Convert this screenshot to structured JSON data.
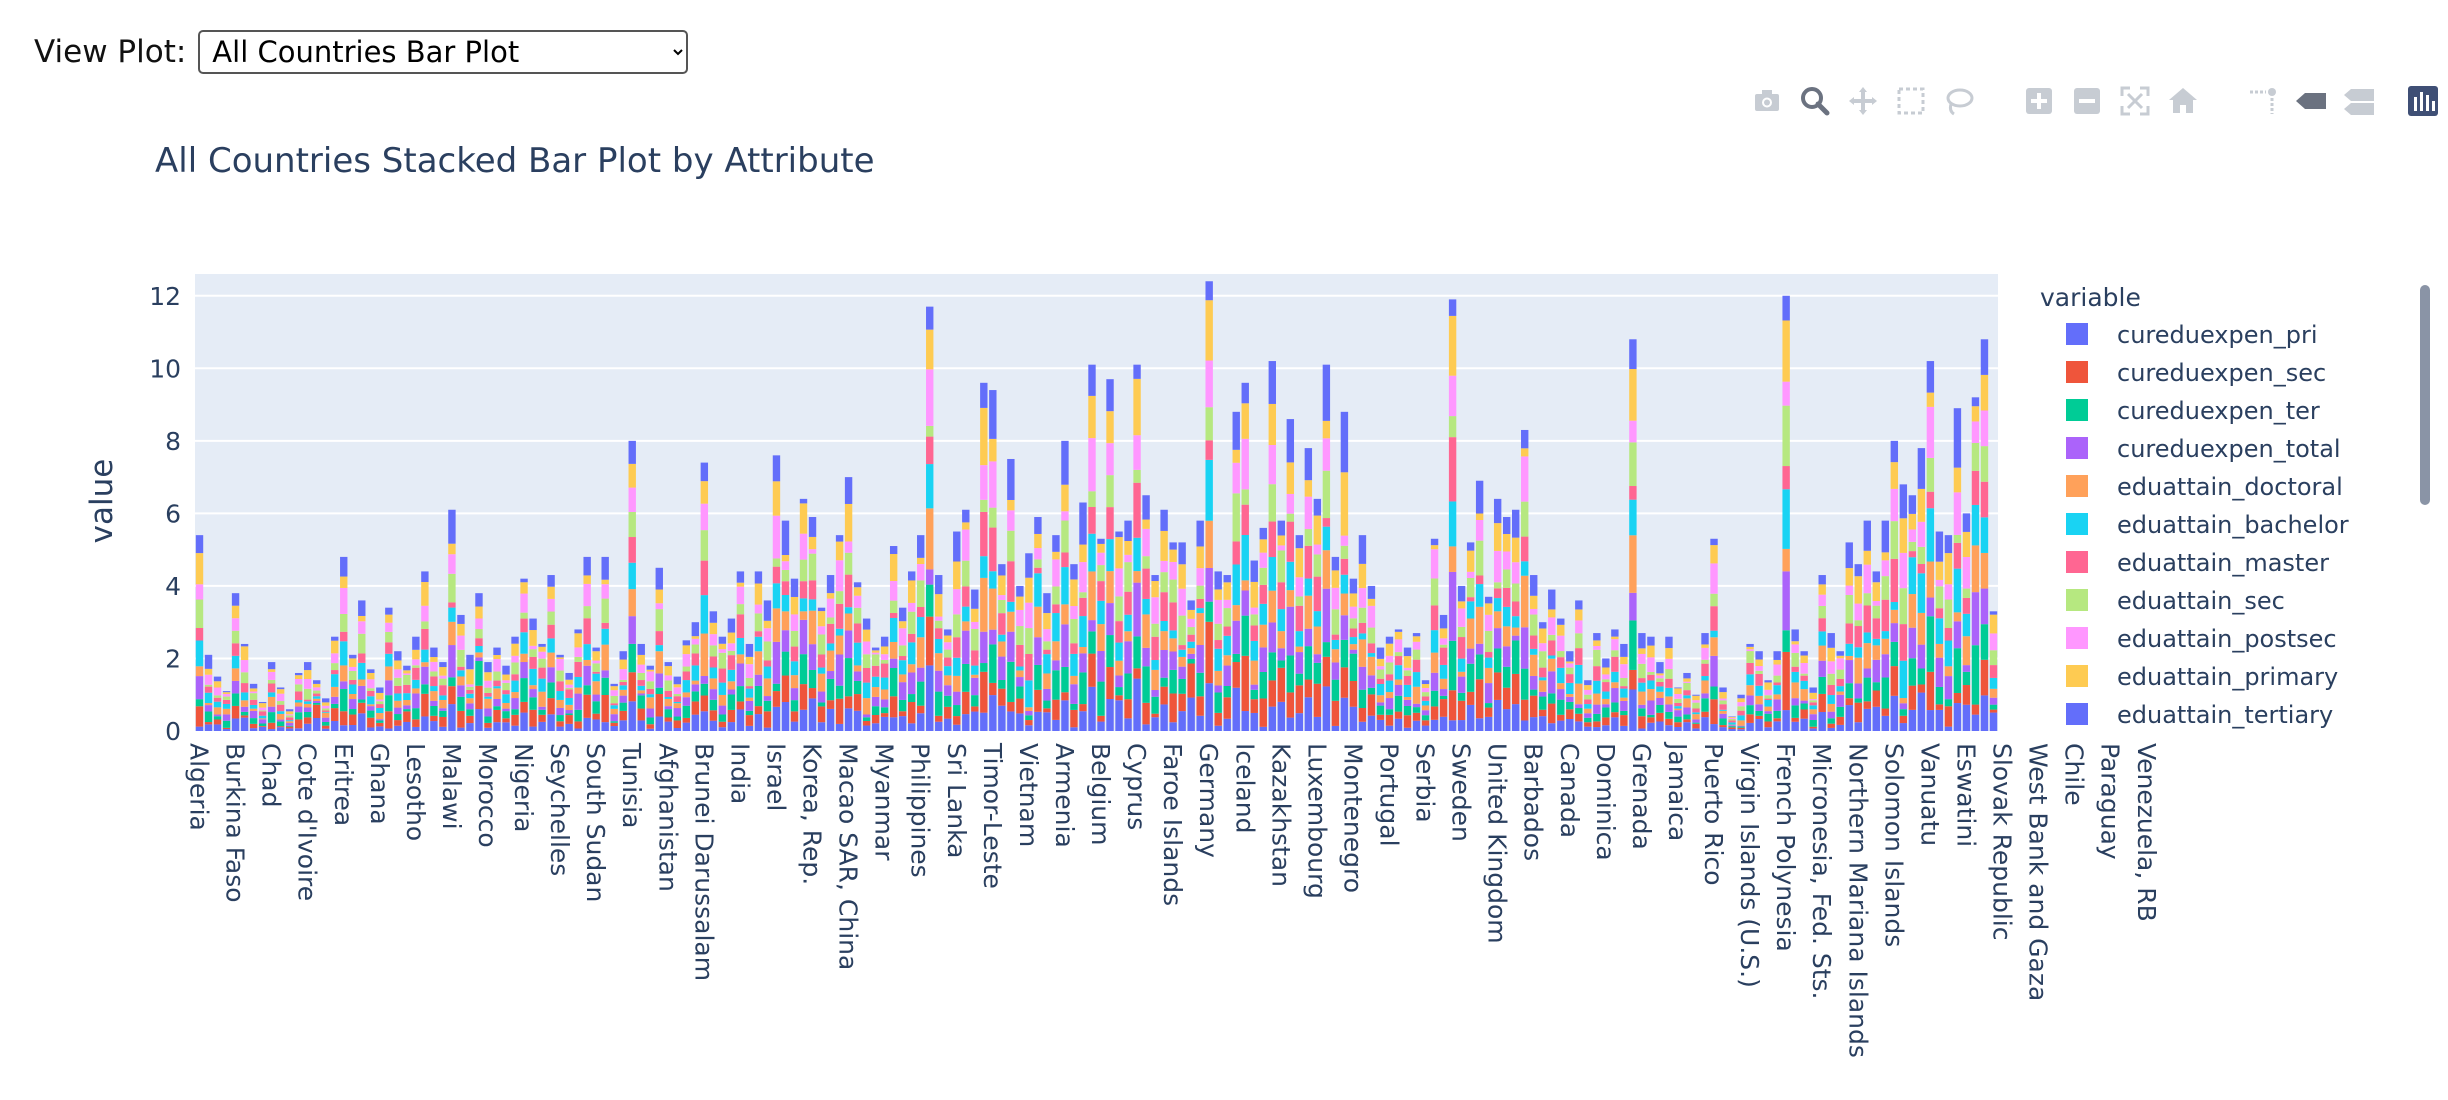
{
  "controls": {
    "label": "View Plot:",
    "selected": "All Countries Bar Plot",
    "options": [
      "All Countries Bar Plot"
    ]
  },
  "modebar": {
    "buttons": [
      {
        "name": "camera-icon",
        "title": "Download plot as a png"
      },
      {
        "name": "zoom-icon",
        "title": "Zoom"
      },
      {
        "name": "pan-icon",
        "title": "Pan"
      },
      {
        "name": "box-select-icon",
        "title": "Box Select"
      },
      {
        "name": "lasso-select-icon",
        "title": "Lasso Select"
      },
      {
        "name": "zoom-in-icon",
        "title": "Zoom in"
      },
      {
        "name": "zoom-out-icon",
        "title": "Zoom out"
      },
      {
        "name": "autoscale-icon",
        "title": "Autoscale"
      },
      {
        "name": "reset-axes-icon",
        "title": "Reset axes"
      },
      {
        "name": "spike-lines-icon",
        "title": "Toggle Spike Lines"
      },
      {
        "name": "hover-closest-icon",
        "title": "Show closest data on hover"
      },
      {
        "name": "hover-compare-icon",
        "title": "Compare data on hover"
      },
      {
        "name": "plotly-logo-icon",
        "title": "Produced with Plotly"
      }
    ],
    "active": "zoom-icon"
  },
  "chart_data": {
    "type": "bar",
    "barmode": "stack",
    "title": "All Countries Stacked Bar Plot by Attribute",
    "xlabel": "",
    "ylabel": "value",
    "ylim": [
      0,
      12.6
    ],
    "yticks": [
      0,
      2,
      4,
      6,
      8,
      10,
      12
    ],
    "grid": true,
    "legend_title": "variable",
    "legend_position": "right",
    "series": [
      {
        "name": "cureduexpen_pri",
        "color": "#636efa"
      },
      {
        "name": "cureduexpen_sec",
        "color": "#EF553B"
      },
      {
        "name": "cureduexpen_ter",
        "color": "#00cc96"
      },
      {
        "name": "cureduexpen_total",
        "color": "#ab63fa"
      },
      {
        "name": "eduattain_doctoral",
        "color": "#FFA15A"
      },
      {
        "name": "eduattain_bachelor",
        "color": "#19d3f3"
      },
      {
        "name": "eduattain_master",
        "color": "#FF6692"
      },
      {
        "name": "eduattain_sec",
        "color": "#B6E880"
      },
      {
        "name": "eduattain_postsec",
        "color": "#FF97FF"
      },
      {
        "name": "eduattain_primary",
        "color": "#FECB52"
      },
      {
        "name": "eduattain_tertiary",
        "color": "#636efa"
      }
    ],
    "countries": [
      "Algeria",
      "Burkina Faso",
      "Chad",
      "Cote d'Ivoire",
      "Eritrea",
      "Ghana",
      "Lesotho",
      "Malawi",
      "Morocco",
      "Nigeria",
      "Seychelles",
      "South Sudan",
      "Tunisia",
      "Afghanistan",
      "Brunei Darussalam",
      "India",
      "Israel",
      "Korea, Rep.",
      "Macao SAR, China",
      "Myanmar",
      "Philippines",
      "Sri Lanka",
      "Timor-Leste",
      "Vietnam",
      "Armenia",
      "Belgium",
      "Cyprus",
      "Faroe Islands",
      "Germany",
      "Iceland",
      "Kazakhstan",
      "Luxembourg",
      "Montenegro",
      "Portugal",
      "Serbia",
      "Sweden",
      "United Kingdom",
      "Barbados",
      "Canada",
      "Dominica",
      "Grenada",
      "Jamaica",
      "Puerto Rico",
      "Virgin Islands (U.S.)",
      "French Polynesia",
      "Micronesia, Fed. Sts.",
      "Northern Mariana Islands",
      "Solomon Islands",
      "Vanuatu",
      "Eswatini",
      "Slovak Republic",
      "West Bank and Gaza",
      "Chile",
      "Paraguay",
      "Venezuela, RB"
    ],
    "bars_per_label": 4,
    "totals": [
      5.4,
      2.1,
      1.5,
      1.1,
      3.8,
      2.4,
      1.3,
      0.8,
      1.9,
      1.2,
      0.6,
      1.6,
      1.9,
      1.4,
      0.9,
      2.6,
      4.8,
      2.1,
      3.6,
      1.7,
      1.2,
      3.4,
      2.2,
      1.8,
      2.6,
      4.4,
      2.3,
      1.9,
      6.1,
      3.2,
      2.1,
      3.8,
      1.9,
      2.3,
      1.8,
      2.6,
      4.2,
      3.1,
      2.4,
      4.3,
      2.1,
      1.6,
      2.8,
      4.8,
      2.3,
      4.8,
      1.3,
      2.2,
      8.0,
      2.4,
      1.8,
      4.5,
      1.9,
      1.5,
      2.5,
      3.0,
      7.4,
      3.3,
      2.6,
      3.1,
      4.4,
      2.4,
      4.4,
      3.6,
      7.6,
      5.8,
      4.2,
      6.4,
      5.9,
      3.4,
      4.3,
      5.4,
      7.0,
      4.1,
      3.1,
      2.3,
      2.6,
      5.1,
      3.4,
      4.4,
      5.4,
      11.7,
      4.3,
      2.8,
      5.5,
      6.1,
      3.9,
      9.6,
      9.4,
      4.6,
      7.5,
      4.0,
      4.9,
      5.9,
      3.8,
      5.4,
      8.0,
      4.6,
      6.3,
      10.1,
      5.3,
      9.7,
      5.5,
      5.8,
      10.1,
      6.5,
      4.3,
      6.1,
      5.2,
      5.2,
      3.6,
      5.8,
      12.4,
      4.4,
      4.3,
      8.8,
      9.6,
      4.7,
      5.6,
      10.2,
      5.8,
      8.6,
      5.4,
      7.8,
      6.4,
      10.1,
      4.8,
      8.8,
      4.2,
      5.4,
      4.0,
      2.3,
      2.6,
      2.8,
      2.3,
      2.7,
      1.4,
      5.3,
      3.2,
      11.9,
      4.0,
      5.2,
      6.9,
      3.7,
      6.4,
      5.9,
      6.1,
      8.3,
      4.3,
      3.0,
      3.9,
      3.1,
      2.2,
      3.6,
      1.4,
      2.7,
      2.0,
      2.8,
      2.4,
      10.8,
      2.7,
      2.6,
      1.9,
      2.6,
      1.2,
      1.6,
      1.0,
      2.7,
      5.3,
      1.2,
      0.4,
      1.0,
      2.4,
      2.2,
      1.4,
      2.2,
      12.0,
      2.8,
      2.2,
      1.2,
      4.3,
      2.7,
      2.2,
      5.2,
      4.6,
      5.8,
      4.4,
      5.8,
      8.0,
      6.8,
      6.5,
      7.8,
      10.2,
      5.5,
      5.4,
      8.9,
      6.0,
      9.2,
      10.8,
      3.3
    ]
  }
}
